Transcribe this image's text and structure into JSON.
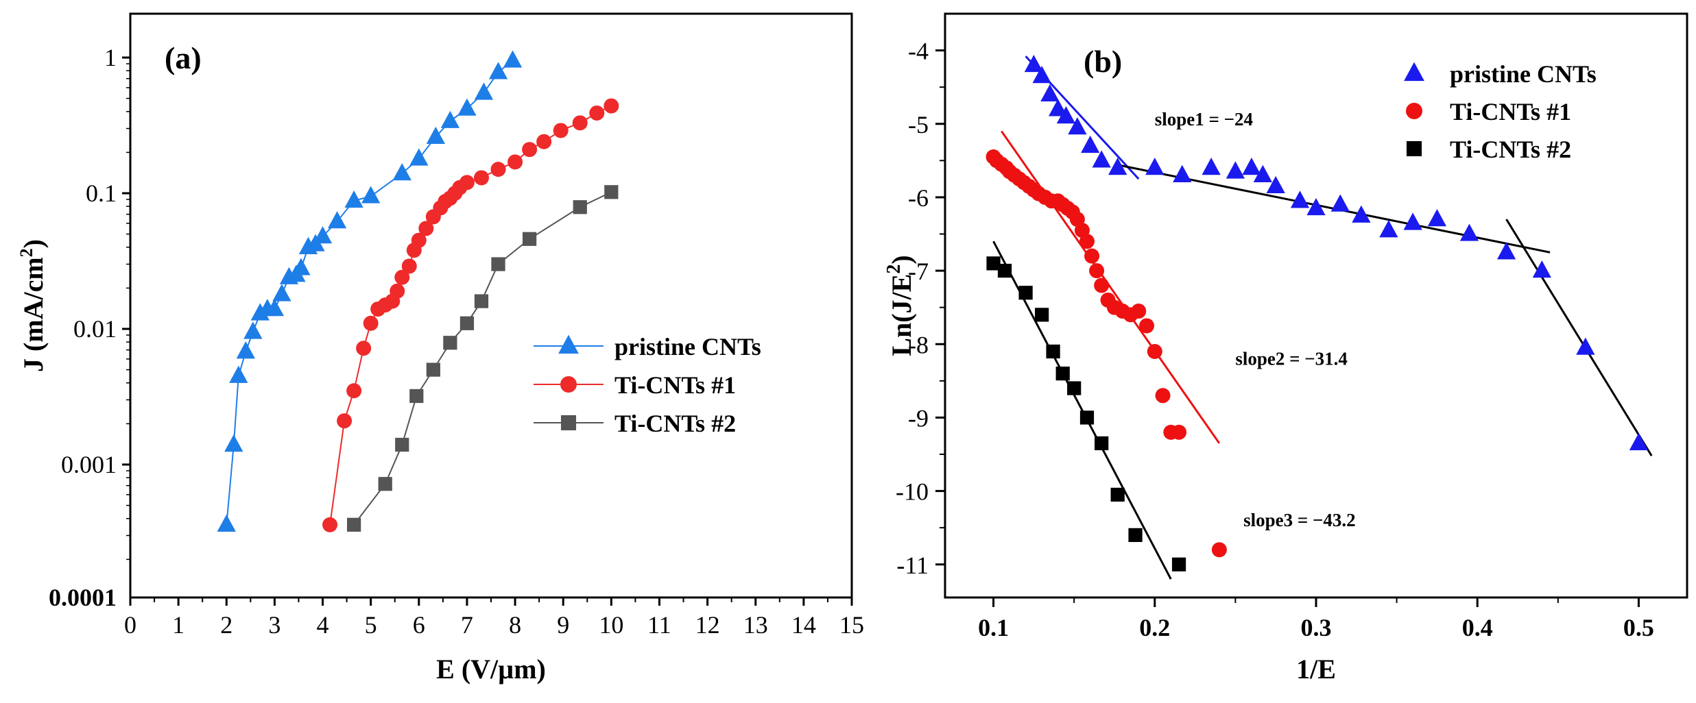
{
  "chart_data": [
    {
      "type": "line",
      "panel_label": "(a)",
      "xlabel": "E (V/µm)",
      "ylabel_main": "J (mA/cm",
      "ylabel_sup": "2",
      "ylabel_end": ")",
      "xlim": [
        0,
        15
      ],
      "ylim": [
        0.0001,
        1.5
      ],
      "yscale": "log",
      "x_ticks": [
        0,
        1,
        2,
        3,
        4,
        5,
        6,
        7,
        8,
        9,
        10,
        11,
        12,
        13,
        14,
        15
      ],
      "x_tick_labels": [
        "0",
        "1",
        "2",
        "3",
        "4",
        "5",
        "6",
        "7",
        "8",
        "9",
        "10",
        "11",
        "12",
        "13",
        "14",
        "15"
      ],
      "y_ticks": [
        0.0001,
        0.001,
        0.01,
        0.1,
        1
      ],
      "y_tick_labels": [
        "0.0001",
        "0.001",
        "0.01",
        "0.1",
        "1"
      ],
      "legend_position": "center-right",
      "series": [
        {
          "name": "pristine CNTs",
          "color": "#1e7ee8",
          "marker": "triangle",
          "x": [
            2.0,
            2.15,
            2.25,
            2.4,
            2.55,
            2.7,
            2.85,
            3.0,
            3.15,
            3.3,
            3.45,
            3.55,
            3.7,
            3.85,
            4.0,
            4.3,
            4.65,
            5.0,
            5.65,
            6.0,
            6.35,
            6.65,
            7.0,
            7.35,
            7.65,
            7.95
          ],
          "y": [
            0.00036,
            0.0014,
            0.0045,
            0.0068,
            0.0095,
            0.013,
            0.014,
            0.014,
            0.018,
            0.024,
            0.025,
            0.028,
            0.04,
            0.042,
            0.048,
            0.062,
            0.088,
            0.095,
            0.14,
            0.18,
            0.26,
            0.34,
            0.42,
            0.55,
            0.78,
            0.95
          ]
        },
        {
          "name": "Ti-CNTs #1",
          "color": "#ee2a2a",
          "marker": "circle",
          "x": [
            4.15,
            4.45,
            4.65,
            4.85,
            5.0,
            5.15,
            5.3,
            5.45,
            5.55,
            5.65,
            5.8,
            5.9,
            6.0,
            6.15,
            6.3,
            6.45,
            6.55,
            6.65,
            6.75,
            6.85,
            7.0,
            7.3,
            7.65,
            8.0,
            8.3,
            8.6,
            8.95,
            9.35,
            9.7,
            10.0
          ],
          "y": [
            0.00036,
            0.0021,
            0.0035,
            0.0072,
            0.011,
            0.014,
            0.015,
            0.016,
            0.019,
            0.024,
            0.029,
            0.038,
            0.045,
            0.055,
            0.067,
            0.078,
            0.087,
            0.092,
            0.1,
            0.11,
            0.12,
            0.13,
            0.15,
            0.17,
            0.21,
            0.24,
            0.29,
            0.33,
            0.39,
            0.44
          ]
        },
        {
          "name": "Ti-CNTs #2",
          "color": "#555555",
          "marker": "square",
          "x": [
            4.65,
            5.3,
            5.65,
            5.95,
            6.3,
            6.65,
            7.0,
            7.3,
            7.65,
            8.3,
            9.35,
            10.0
          ],
          "y": [
            0.00036,
            0.00072,
            0.0014,
            0.0032,
            0.005,
            0.0079,
            0.011,
            0.016,
            0.03,
            0.046,
            0.079,
            0.102
          ]
        }
      ]
    },
    {
      "type": "scatter",
      "panel_label": "(b)",
      "xlabel": "1/E",
      "ylabel_main": "Ln(J/E",
      "ylabel_sup": "2",
      "ylabel_end": ")",
      "xlim": [
        0.07,
        0.53
      ],
      "ylim": [
        -11.45,
        -3.5
      ],
      "x_ticks": [
        0.1,
        0.2,
        0.3,
        0.4,
        0.5
      ],
      "x_tick_labels": [
        "0.1",
        "0.2",
        "0.3",
        "0.4",
        "0.5"
      ],
      "y_ticks": [
        -4,
        -5,
        -6,
        -7,
        -8,
        -9,
        -10,
        -11
      ],
      "y_tick_labels": [
        "-4",
        "-5",
        "-6",
        "-7",
        "-8",
        "-9",
        "-10",
        "-11"
      ],
      "legend_position": "top-right",
      "series": [
        {
          "name": "pristine CNTs",
          "color": "#1a1aee",
          "marker": "triangle",
          "x": [
            0.125,
            0.13,
            0.135,
            0.14,
            0.145,
            0.152,
            0.16,
            0.167,
            0.177,
            0.2,
            0.217,
            0.235,
            0.25,
            0.26,
            0.267,
            0.275,
            0.29,
            0.3,
            0.315,
            0.328,
            0.345,
            0.36,
            0.375,
            0.395,
            0.418,
            0.44,
            0.467,
            0.5
          ],
          "y": [
            -4.2,
            -4.35,
            -4.6,
            -4.8,
            -4.9,
            -5.05,
            -5.3,
            -5.5,
            -5.6,
            -5.6,
            -5.7,
            -5.6,
            -5.65,
            -5.6,
            -5.7,
            -5.85,
            -6.05,
            -6.15,
            -6.1,
            -6.25,
            -6.45,
            -6.35,
            -6.3,
            -6.5,
            -6.75,
            -7.0,
            -8.05,
            -9.35
          ]
        },
        {
          "name": "Ti-CNTs #1",
          "color": "#ee1111",
          "marker": "circle",
          "x": [
            0.1,
            0.102,
            0.105,
            0.108,
            0.11,
            0.113,
            0.116,
            0.119,
            0.122,
            0.125,
            0.128,
            0.132,
            0.136,
            0.14,
            0.143,
            0.146,
            0.149,
            0.152,
            0.155,
            0.158,
            0.161,
            0.164,
            0.167,
            0.171,
            0.175,
            0.18,
            0.185,
            0.19,
            0.195,
            0.2,
            0.205,
            0.21,
            0.215,
            0.24
          ],
          "y": [
            -5.45,
            -5.5,
            -5.55,
            -5.6,
            -5.65,
            -5.7,
            -5.75,
            -5.8,
            -5.85,
            -5.9,
            -5.95,
            -6.0,
            -6.05,
            -6.05,
            -6.1,
            -6.15,
            -6.2,
            -6.3,
            -6.45,
            -6.6,
            -6.8,
            -7.0,
            -7.2,
            -7.4,
            -7.5,
            -7.55,
            -7.6,
            -7.55,
            -7.75,
            -8.1,
            -8.7,
            -9.2,
            -9.2,
            -10.8
          ]
        },
        {
          "name": "Ti-CNTs #2",
          "color": "#000000",
          "marker": "square",
          "x": [
            0.1,
            0.107,
            0.12,
            0.13,
            0.137,
            0.143,
            0.15,
            0.158,
            0.167,
            0.177,
            0.188,
            0.215
          ],
          "y": [
            -6.9,
            -7.0,
            -7.3,
            -7.6,
            -8.1,
            -8.4,
            -8.6,
            -9.0,
            -9.35,
            -10.05,
            -10.6,
            -11.0
          ]
        }
      ],
      "fit_lines": [
        {
          "color": "#1a1aee",
          "x": [
            0.12,
            0.19
          ],
          "y": [
            -4.08,
            -5.75
          ]
        },
        {
          "color": "#000000",
          "x": [
            0.175,
            0.445
          ],
          "y": [
            -5.55,
            -6.75
          ]
        },
        {
          "color": "#000000",
          "x": [
            0.418,
            0.508
          ],
          "y": [
            -6.3,
            -9.52
          ]
        },
        {
          "color": "#ee1111",
          "x": [
            0.105,
            0.24
          ],
          "y": [
            -5.1,
            -9.35
          ]
        },
        {
          "color": "#000000",
          "x": [
            0.1,
            0.21
          ],
          "y": [
            -6.6,
            -11.2
          ]
        }
      ],
      "annotations": [
        {
          "text": "slope1 = −24",
          "x": 0.2,
          "y": -5.02
        },
        {
          "text": "slope2 = −31.4",
          "x": 0.25,
          "y": -8.28
        },
        {
          "text": "slope3 = −43.2",
          "x": 0.255,
          "y": -10.48
        }
      ]
    }
  ]
}
